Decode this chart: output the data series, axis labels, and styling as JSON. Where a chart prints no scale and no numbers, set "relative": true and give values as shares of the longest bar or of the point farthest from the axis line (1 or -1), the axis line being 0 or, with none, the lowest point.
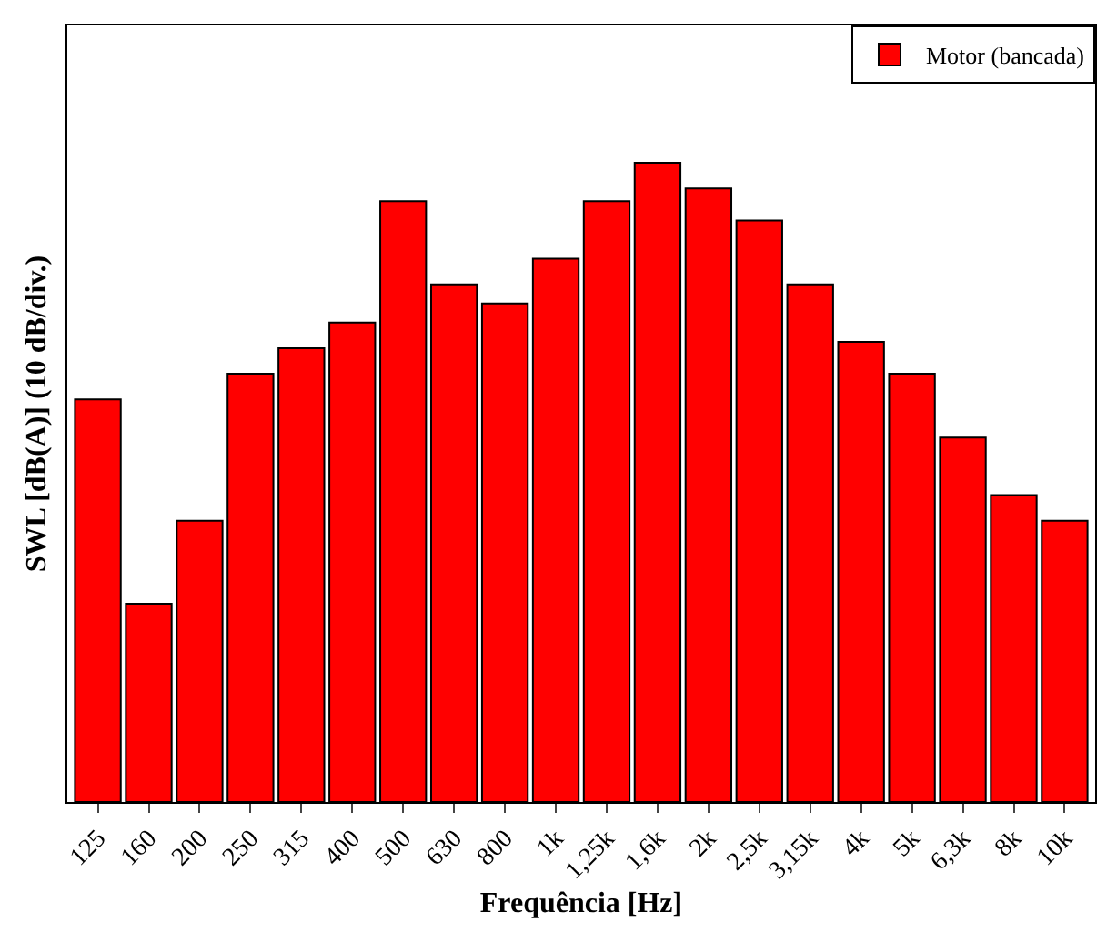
{
  "chart_data": {
    "type": "bar",
    "relative": true,
    "xlabel": "Frequência [Hz]",
    "ylabel": "SWL [dB(A)] (10 dB/div.)",
    "categories": [
      "125",
      "160",
      "200",
      "250",
      "315",
      "400",
      "500",
      "630",
      "800",
      "1k",
      "1,25k",
      "1,6k",
      "2k",
      "2,5k",
      "3,15k",
      "4k",
      "5k",
      "6,3k",
      "8k",
      "10k"
    ],
    "series": [
      {
        "name": "Motor (bancada)",
        "color": "#ff0000",
        "values": [
          0.63,
          0.31,
          0.44,
          0.67,
          0.71,
          0.75,
          0.94,
          0.81,
          0.78,
          0.85,
          0.94,
          1,
          0.96,
          0.91,
          0.81,
          0.72,
          0.67,
          0.57,
          0.48,
          0.44
        ]
      }
    ],
    "legend": "top right",
    "grid": false
  }
}
